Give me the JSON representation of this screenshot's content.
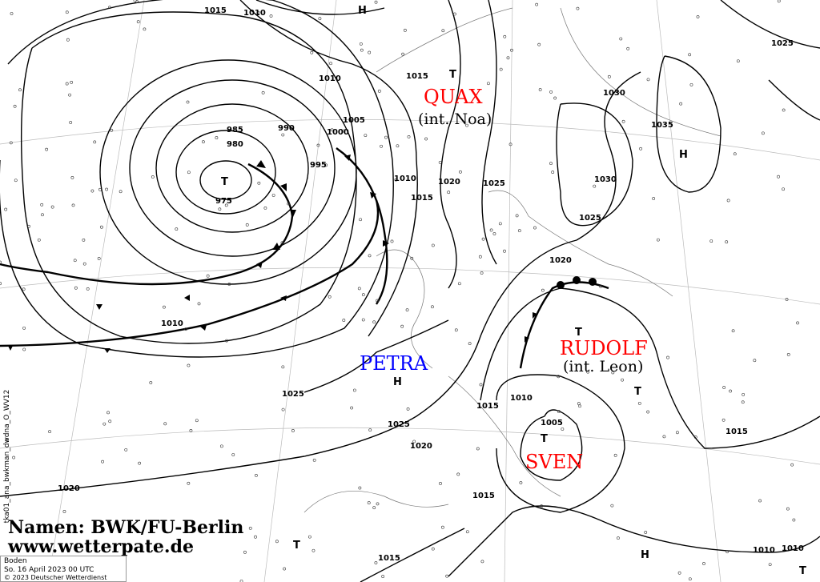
{
  "systems": [
    {
      "name": "QUAX",
      "sub": "(int. Noa)",
      "color": "#ff0000"
    },
    {
      "name": "PETRA",
      "color": "#0000ff"
    },
    {
      "name": "RUDOLF",
      "sub": "(int. Leon)",
      "color": "#ff0000"
    },
    {
      "name": "SVEN",
      "color": "#ff0000"
    }
  ],
  "centers": [
    "H",
    "T",
    "T",
    "H",
    "H",
    "T",
    "T",
    "T",
    "H",
    "T",
    "T"
  ],
  "isobar_labels": [
    "1015",
    "1010",
    "1010",
    "1015",
    "1005",
    "1000",
    "985",
    "990",
    "980",
    "995",
    "975",
    "1010",
    "1010",
    "1015",
    "1020",
    "1025",
    "1030",
    "1030",
    "1035",
    "1025",
    "1025",
    "1020",
    "1025",
    "1025",
    "1020",
    "1015",
    "1010",
    "1005",
    "1020",
    "1015",
    "1015",
    "1010",
    "1010",
    "1015"
  ],
  "credits": {
    "line1": "Namen: BWK/FU-Berlin",
    "line2": "www.wetterpate.de"
  },
  "info": {
    "level": "Boden",
    "datetime": "So. 16 April 2023 00 UTC",
    "copyright": "© 2023 Deutscher Wetterdienst"
  },
  "product_id": "tka01_ana_bwkman_dwdna_O_WV12"
}
